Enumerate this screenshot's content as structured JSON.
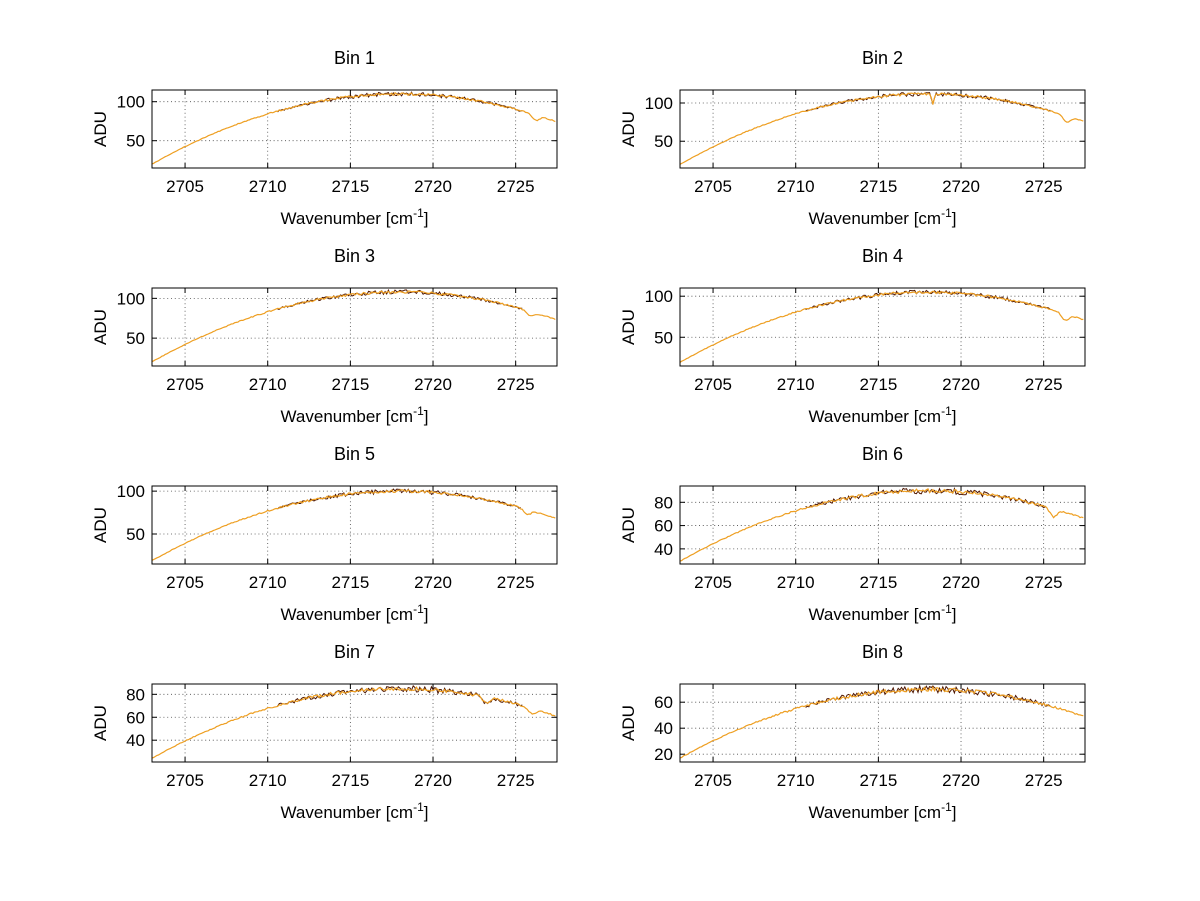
{
  "figure": {
    "background": "#ffffff",
    "grid_color": "#4a4a4a",
    "axis_color": "#000000",
    "series_color": "#ee9f22",
    "overlay_color": "#4d1500"
  },
  "chart_data": [
    {
      "type": "line",
      "title": "Bin 1",
      "xlabel": {
        "pre": "Wavenumber [cm",
        "sup": "-1",
        "post": "]",
        "full_text": "Wavenumber [cm^-1]"
      },
      "ylabel": "ADU",
      "xlim": [
        2703,
        2727.5
      ],
      "ylim": [
        15,
        115
      ],
      "x_ticks": [
        2705,
        2710,
        2715,
        2720,
        2725
      ],
      "y_ticks": [
        50,
        100
      ],
      "grid": "dotted",
      "x": [
        2703,
        2704,
        2705,
        2706,
        2707,
        2708,
        2709,
        2710,
        2711,
        2712,
        2713,
        2714,
        2715,
        2716,
        2717,
        2718,
        2719,
        2720,
        2721,
        2722,
        2723,
        2724,
        2725,
        2726,
        2727
      ],
      "values": [
        20,
        31.6,
        42.4,
        52.4,
        61.6,
        70,
        77.6,
        84.4,
        90.4,
        95.6,
        100,
        103.6,
        106.4,
        108.4,
        109.6,
        110,
        109.6,
        108.4,
        106.4,
        103.6,
        100,
        95.6,
        90.4,
        84.4,
        77.6
      ],
      "dips": [
        {
          "x": 2726.2,
          "depth": 7
        }
      ]
    },
    {
      "type": "line",
      "title": "Bin 2",
      "xlabel": {
        "pre": "Wavenumber [cm",
        "sup": "-1",
        "post": "]",
        "full_text": "Wavenumber [cm^-1]"
      },
      "ylabel": "ADU",
      "xlim": [
        2703,
        2727.5
      ],
      "ylim": [
        15,
        117
      ],
      "x_ticks": [
        2705,
        2710,
        2715,
        2720,
        2725
      ],
      "y_ticks": [
        50,
        100
      ],
      "grid": "dotted",
      "x": [
        2703,
        2704,
        2705,
        2706,
        2707,
        2708,
        2709,
        2710,
        2711,
        2712,
        2713,
        2714,
        2715,
        2716,
        2717,
        2718,
        2719,
        2720,
        2721,
        2722,
        2723,
        2724,
        2725,
        2726,
        2727
      ],
      "values": [
        19.8,
        31.6,
        42.7,
        53,
        62.4,
        71,
        78.8,
        85.8,
        91.9,
        97.2,
        101.8,
        105.4,
        108.3,
        110.4,
        111.6,
        112,
        111.6,
        110.4,
        108.3,
        105.4,
        101.8,
        97.2,
        91.9,
        85.8,
        78.8
      ],
      "dips": [
        {
          "x": 2718.3,
          "depth": 14,
          "w": 0.1
        },
        {
          "x": 2726.4,
          "depth": 8
        }
      ]
    },
    {
      "type": "line",
      "title": "Bin 3",
      "xlabel": {
        "pre": "Wavenumber [cm",
        "sup": "-1",
        "post": "]",
        "full_text": "Wavenumber [cm^-1]"
      },
      "ylabel": "ADU",
      "xlim": [
        2703,
        2727.5
      ],
      "ylim": [
        15,
        113
      ],
      "x_ticks": [
        2705,
        2710,
        2715,
        2720,
        2725
      ],
      "y_ticks": [
        50,
        100
      ],
      "grid": "dotted",
      "x": [
        2703,
        2704,
        2705,
        2706,
        2707,
        2708,
        2709,
        2710,
        2711,
        2712,
        2713,
        2714,
        2715,
        2716,
        2717,
        2718,
        2719,
        2720,
        2721,
        2722,
        2723,
        2724,
        2725,
        2726,
        2727
      ],
      "values": [
        20.3,
        31.6,
        42.1,
        51.8,
        60.8,
        69,
        76.4,
        83,
        88.9,
        94,
        98.3,
        101.8,
        104.5,
        106.4,
        107.6,
        108,
        107.6,
        106.4,
        104.5,
        101.8,
        98.3,
        94,
        88.9,
        83,
        76.4
      ],
      "dips": [
        {
          "x": 2725.9,
          "depth": 6
        }
      ]
    },
    {
      "type": "line",
      "title": "Bin 4",
      "xlabel": {
        "pre": "Wavenumber [cm",
        "sup": "-1",
        "post": "]",
        "full_text": "Wavenumber [cm^-1]"
      },
      "ylabel": "ADU",
      "xlim": [
        2703,
        2727.5
      ],
      "ylim": [
        15,
        110
      ],
      "x_ticks": [
        2705,
        2710,
        2715,
        2720,
        2725
      ],
      "y_ticks": [
        50,
        100
      ],
      "grid": "dotted",
      "x": [
        2703,
        2704,
        2705,
        2706,
        2707,
        2708,
        2709,
        2710,
        2711,
        2712,
        2713,
        2714,
        2715,
        2716,
        2717,
        2718,
        2719,
        2720,
        2721,
        2722,
        2723,
        2724,
        2725,
        2726,
        2727
      ],
      "values": [
        19.5,
        30.5,
        40.8,
        50.3,
        59,
        67,
        74.2,
        80.7,
        86.4,
        91.3,
        95.5,
        98.9,
        101.6,
        103.5,
        104.6,
        105,
        104.6,
        103.5,
        101.6,
        98.9,
        95.5,
        91.3,
        86.4,
        80.7,
        74.2
      ],
      "dips": [
        {
          "x": 2726.3,
          "depth": 8
        }
      ]
    },
    {
      "type": "line",
      "title": "Bin 5",
      "xlabel": {
        "pre": "Wavenumber [cm",
        "sup": "-1",
        "post": "]",
        "full_text": "Wavenumber [cm^-1]"
      },
      "ylabel": "ADU",
      "xlim": [
        2703,
        2727.5
      ],
      "ylim": [
        15,
        106
      ],
      "x_ticks": [
        2705,
        2710,
        2715,
        2720,
        2725
      ],
      "y_ticks": [
        50,
        100
      ],
      "grid": "dotted",
      "x": [
        2703,
        2704,
        2705,
        2706,
        2707,
        2708,
        2709,
        2710,
        2711,
        2712,
        2713,
        2714,
        2715,
        2716,
        2717,
        2718,
        2719,
        2720,
        2721,
        2722,
        2723,
        2724,
        2725,
        2726,
        2727
      ],
      "values": [
        19,
        29.4,
        39.2,
        48.2,
        56.4,
        64,
        70.8,
        77,
        82.4,
        87,
        91,
        94.2,
        96.8,
        98.6,
        99.6,
        100,
        99.6,
        98.6,
        96.8,
        94.2,
        91,
        87,
        82.4,
        77,
        70.8
      ],
      "dips": [
        {
          "x": 2725.7,
          "depth": 6
        }
      ]
    },
    {
      "type": "line",
      "title": "Bin 6",
      "xlabel": {
        "pre": "Wavenumber [cm",
        "sup": "-1",
        "post": "]",
        "full_text": "Wavenumber [cm^-1]"
      },
      "ylabel": "ADU",
      "xlim": [
        2703,
        2727.5
      ],
      "ylim": [
        27,
        94
      ],
      "x_ticks": [
        2705,
        2710,
        2715,
        2720,
        2725
      ],
      "y_ticks": [
        40,
        60,
        80
      ],
      "grid": "dotted",
      "x": [
        2703,
        2704,
        2705,
        2706,
        2707,
        2708,
        2709,
        2710,
        2711,
        2712,
        2713,
        2714,
        2715,
        2716,
        2717,
        2718,
        2719,
        2720,
        2721,
        2722,
        2723,
        2724,
        2725,
        2726,
        2727
      ],
      "values": [
        29.3,
        37.1,
        44.4,
        51.1,
        57.3,
        63,
        68.1,
        72.7,
        76.8,
        80.3,
        83.3,
        85.7,
        87.6,
        88.9,
        89.7,
        90,
        89.7,
        88.9,
        87.6,
        85.7,
        83.3,
        80.3,
        76.8,
        72.7,
        68.1
      ],
      "dips": [
        {
          "x": 2725.6,
          "depth": 7
        }
      ]
    },
    {
      "type": "line",
      "title": "Bin 7",
      "xlabel": {
        "pre": "Wavenumber [cm",
        "sup": "-1",
        "post": "]",
        "full_text": "Wavenumber [cm^-1]"
      },
      "ylabel": "ADU",
      "xlim": [
        2703,
        2727.5
      ],
      "ylim": [
        21,
        89
      ],
      "x_ticks": [
        2705,
        2710,
        2715,
        2720,
        2725
      ],
      "y_ticks": [
        40,
        60,
        80
      ],
      "grid": "dotted",
      "x": [
        2703,
        2704,
        2705,
        2706,
        2707,
        2708,
        2709,
        2710,
        2711,
        2712,
        2713,
        2714,
        2715,
        2716,
        2717,
        2718,
        2719,
        2720,
        2721,
        2722,
        2723,
        2724,
        2725,
        2726,
        2727
      ],
      "values": [
        24.3,
        32.1,
        39.4,
        46.1,
        52.3,
        58,
        63.1,
        67.7,
        71.8,
        75.3,
        78.3,
        80.7,
        82.6,
        83.9,
        84.7,
        85,
        84.7,
        83.9,
        82.6,
        80.7,
        78.3,
        75.3,
        71.8,
        67.7,
        63.1
      ],
      "dips": [
        {
          "x": 2723.2,
          "depth": 5
        },
        {
          "x": 2726.0,
          "depth": 5
        }
      ]
    },
    {
      "type": "line",
      "title": "Bin 8",
      "xlabel": {
        "pre": "Wavenumber [cm",
        "sup": "-1",
        "post": "]",
        "full_text": "Wavenumber [cm^-1]"
      },
      "ylabel": "ADU",
      "xlim": [
        2703,
        2727.5
      ],
      "ylim": [
        14,
        74
      ],
      "x_ticks": [
        2705,
        2710,
        2715,
        2720,
        2725
      ],
      "y_ticks": [
        20,
        40,
        60
      ],
      "grid": "dotted",
      "x": [
        2703,
        2704,
        2705,
        2706,
        2707,
        2708,
        2709,
        2710,
        2711,
        2712,
        2713,
        2714,
        2715,
        2716,
        2717,
        2718,
        2719,
        2720,
        2721,
        2722,
        2723,
        2724,
        2725,
        2726,
        2727
      ],
      "values": [
        17.1,
        23.9,
        30.3,
        36.2,
        41.6,
        46.5,
        51,
        55,
        58.5,
        61.5,
        64.1,
        66.2,
        67.9,
        69.1,
        69.8,
        70,
        69.8,
        69.1,
        67.9,
        66.2,
        64.1,
        61.5,
        58.5,
        55,
        51
      ],
      "dips": []
    }
  ]
}
